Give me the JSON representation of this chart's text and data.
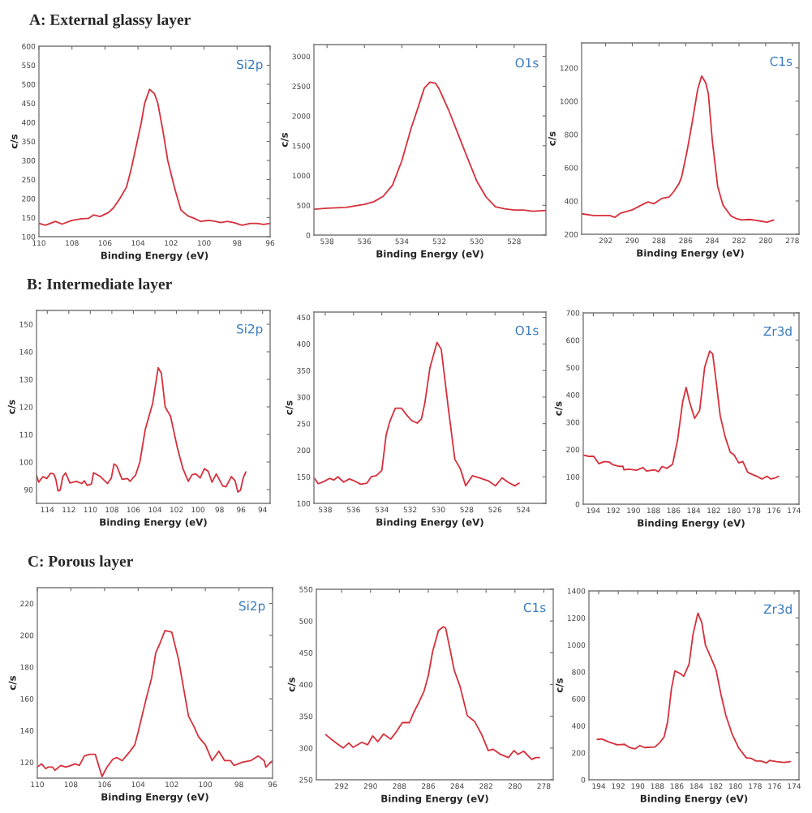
{
  "chart_data": [
    {
      "type": "line",
      "title": "A: External glassy layer",
      "xlabel": "Binding Energy (eV)",
      "ylabel": "c/s",
      "annotations": [
        "Si2p"
      ],
      "xlim": [
        110,
        96
      ],
      "xticks": [
        110,
        108,
        106,
        104,
        102,
        100,
        98,
        96
      ],
      "ylim": [
        100,
        600
      ],
      "yticks": [
        100,
        150,
        200,
        250,
        300,
        350,
        400,
        450,
        500,
        550,
        600
      ],
      "series": [
        {
          "color": "#d6303c",
          "x": [
            110,
            109.6,
            109,
            108.6,
            108,
            107.4,
            107,
            106.7,
            106.3,
            105.8,
            105.5,
            105.1,
            104.7,
            104.4,
            104.1,
            103.8,
            103.6,
            103.3,
            103.0,
            102.8,
            102.5,
            102.2,
            101.8,
            101.4,
            101,
            100.6,
            100.2,
            99.7,
            99.3,
            99,
            98.6,
            98.2,
            97.7,
            97.2,
            96.8,
            96.4,
            96
          ],
          "values": [
            135,
            130,
            140,
            133,
            143,
            147,
            148,
            157,
            153,
            163,
            175,
            200,
            230,
            280,
            340,
            400,
            450,
            487,
            475,
            450,
            380,
            300,
            230,
            170,
            155,
            148,
            140,
            143,
            140,
            137,
            140,
            137,
            130,
            135,
            135,
            132,
            135
          ]
        }
      ]
    },
    {
      "type": "line",
      "xlabel": "Binding Energy (eV)",
      "ylabel": "c/s",
      "annotations": [
        "O1s"
      ],
      "xlim": [
        538.7,
        526.3
      ],
      "xticks": [
        538,
        536,
        534,
        532,
        530,
        528
      ],
      "ylim": [
        0,
        3200
      ],
      "yticks": [
        0,
        500,
        1000,
        1500,
        2000,
        2500,
        3000
      ],
      "series": [
        {
          "color": "#d6303c",
          "x": [
            538.7,
            538,
            537,
            536,
            535.5,
            535,
            534.5,
            534,
            533.5,
            533.2,
            532.8,
            532.5,
            532.2,
            532,
            531.5,
            531,
            530.5,
            530,
            529.5,
            529,
            528.5,
            528,
            527.5,
            527,
            526.5,
            526.3
          ],
          "values": [
            435,
            450,
            465,
            515,
            560,
            650,
            840,
            1250,
            1800,
            2080,
            2470,
            2570,
            2550,
            2450,
            2100,
            1700,
            1300,
            910,
            640,
            475,
            440,
            420,
            420,
            400,
            410,
            410
          ]
        }
      ]
    },
    {
      "type": "line",
      "xlabel": "Binding Energy (eV)",
      "ylabel": "c/s",
      "annotations": [
        "C1s"
      ],
      "xlim": [
        293.8,
        277.5
      ],
      "xticks": [
        292,
        290,
        288,
        286,
        284,
        282,
        280,
        278
      ],
      "ylim": [
        200,
        1350
      ],
      "yticks": [
        200,
        400,
        600,
        800,
        1000,
        1200
      ],
      "series": [
        {
          "color": "#d6303c",
          "x": [
            293.8,
            292.9,
            291.7,
            291.3,
            290.9,
            290,
            289,
            288.8,
            288.4,
            287.8,
            287.25,
            286.9,
            286.5,
            286.3,
            285.9,
            285.5,
            285.1,
            284.8,
            284.5,
            284.3,
            284,
            283.6,
            283.2,
            282.6,
            282.2,
            281.8,
            281.2,
            280.7,
            280.3,
            279.9,
            279.4
          ],
          "values": [
            323,
            313,
            313,
            302,
            326,
            347,
            388,
            394,
            383,
            415,
            423,
            456,
            504,
            545,
            698,
            876,
            1070,
            1151,
            1111,
            1046,
            763,
            488,
            375,
            310,
            294,
            286,
            289,
            283,
            278,
            273,
            286
          ]
        }
      ]
    },
    {
      "type": "line",
      "title": "B: Intermediate layer",
      "xlabel": "Binding Energy (eV)",
      "ylabel": "c/s",
      "annotations": [
        "Si2p"
      ],
      "xlim": [
        115,
        93.3
      ],
      "xticks": [
        114,
        112,
        110,
        108,
        106,
        104,
        102,
        100,
        98,
        96,
        94
      ],
      "ylim": [
        85,
        155
      ],
      "yticks": [
        90,
        100,
        110,
        120,
        130,
        140,
        150
      ],
      "series": [
        {
          "color": "#d6303c",
          "x": [
            115,
            114.8,
            114.4,
            114.05,
            113.7,
            113.4,
            113.2,
            113,
            112.8,
            112.55,
            112.3,
            111.9,
            111.3,
            110.8,
            110.55,
            110.3,
            109.9,
            109.7,
            109.05,
            108.4,
            108.05,
            107.8,
            107.55,
            107.05,
            106.55,
            106.3,
            106.05,
            105.8,
            105.4,
            104.9,
            104.55,
            104.2,
            103.7,
            103.4,
            103.05,
            102.55,
            101.9,
            101.4,
            100.9,
            100.55,
            100.2,
            99.8,
            99.4,
            99.05,
            98.7,
            98.3,
            97.7,
            97.4,
            96.9,
            96.55,
            96.3,
            96.05,
            95.8,
            95.55
          ],
          "values": [
            95.2,
            92.7,
            94.7,
            94,
            95.9,
            95.7,
            93.7,
            89.5,
            89.8,
            94.7,
            96.1,
            92.4,
            93,
            92.2,
            93.2,
            91.5,
            92,
            96.1,
            94.7,
            92.2,
            94.2,
            99.3,
            98.6,
            93.7,
            94,
            93,
            94.2,
            95.2,
            100,
            111.8,
            116.6,
            121.5,
            134.2,
            132.2,
            120,
            116.6,
            104.9,
            97.6,
            93,
            95.4,
            95.7,
            94.2,
            97.6,
            96.6,
            92.7,
            95.7,
            91.3,
            91,
            94.7,
            93.2,
            89.1,
            89.8,
            94.2,
            96.4
          ]
        }
      ]
    },
    {
      "type": "line",
      "xlabel": "Binding Energy (eV)",
      "ylabel": "c/s",
      "annotations": [
        "O1s"
      ],
      "xlim": [
        538.8,
        522.4
      ],
      "xticks": [
        538,
        536,
        534,
        532,
        530,
        528,
        526,
        524
      ],
      "ylim": [
        100,
        460
      ],
      "yticks": [
        100,
        150,
        200,
        250,
        300,
        350,
        400,
        450
      ],
      "series": [
        {
          "color": "#d6303c",
          "x": [
            538.75,
            538.5,
            538.1,
            537.7,
            537.4,
            537.1,
            536.7,
            536.3,
            536,
            535.5,
            535.05,
            534.75,
            534.4,
            534,
            533.7,
            533.45,
            533.05,
            532.6,
            532.3,
            531.9,
            531.5,
            531.2,
            530.96,
            530.6,
            530.1,
            529.8,
            529.3,
            528.84,
            528.45,
            528.07,
            527.6,
            527,
            526.45,
            525.97,
            525.5,
            525.1,
            524.6,
            524.3
          ],
          "values": [
            147,
            137,
            141,
            147,
            144,
            150,
            140,
            146,
            143,
            136,
            138,
            150,
            152,
            162,
            228,
            253,
            279,
            279,
            268,
            256,
            251,
            259,
            289,
            355,
            403,
            390,
            279,
            183,
            165,
            133,
            152,
            147,
            142,
            133,
            148,
            140,
            133,
            138
          ]
        }
      ]
    },
    {
      "type": "line",
      "xlabel": "Binding Energy (eV)",
      "ylabel": "c/s",
      "annotations": [
        "Zr3d"
      ],
      "xlim": [
        195,
        173.5
      ],
      "xticks": [
        194,
        192,
        190,
        188,
        186,
        184,
        182,
        180,
        178,
        176,
        174
      ],
      "ylim": [
        0,
        700
      ],
      "yticks": [
        0,
        100,
        200,
        300,
        400,
        500,
        600,
        700
      ],
      "series": [
        {
          "color": "#d6303c",
          "x": [
            195,
            194.45,
            193.95,
            193.45,
            192.9,
            192.4,
            192.05,
            191.4,
            191.05,
            190.95,
            190.4,
            189.7,
            189.05,
            188.7,
            187.9,
            187.5,
            187.15,
            186.65,
            186.1,
            185.6,
            185.1,
            184.75,
            184.4,
            183.9,
            183.4,
            182.9,
            182.4,
            182.1,
            181.7,
            181.35,
            180.85,
            180.35,
            179.97,
            179.5,
            179.1,
            178.6,
            178.1,
            177.7,
            177.2,
            176.7,
            176.3,
            175.8,
            175.56
          ],
          "values": [
            180,
            175,
            175,
            148,
            156,
            154,
            144,
            138,
            139,
            126,
            128,
            124,
            134,
            121,
            126,
            119,
            138,
            131,
            146,
            235,
            373,
            427,
            373,
            314,
            343,
            501,
            560,
            550,
            432,
            323,
            245,
            190,
            180,
            151,
            156,
            116,
            108,
            102,
            92,
            102,
            92,
            97,
            102
          ]
        }
      ]
    },
    {
      "type": "line",
      "title": "C: Porous layer",
      "xlabel": "Binding Energy (eV)",
      "ylabel": "c/s",
      "annotations": [
        "Si2p"
      ],
      "xlim": [
        110,
        96
      ],
      "xticks": [
        110,
        108,
        106,
        104,
        102,
        100,
        98,
        96
      ],
      "ylim": [
        110,
        230
      ],
      "yticks": [
        120,
        140,
        160,
        180,
        200,
        220
      ],
      "series": [
        {
          "color": "#d6303c",
          "x": [
            110,
            109.75,
            109.5,
            109.35,
            109.1,
            108.95,
            108.6,
            108.3,
            108,
            107.75,
            107.5,
            107.2,
            106.9,
            106.55,
            106.15,
            105.85,
            105.5,
            105.27,
            104.95,
            104.55,
            104.2,
            104,
            103.5,
            103.2,
            102.95,
            102.7,
            102.4,
            102,
            101.6,
            101,
            100.7,
            100.4,
            100,
            99.6,
            99.2,
            98.85,
            98.5,
            98.3,
            97.8,
            97.3,
            96.85,
            96.5,
            96.4,
            96
          ],
          "values": [
            117,
            119,
            116,
            117,
            117,
            115,
            118,
            117,
            118,
            119,
            118,
            124,
            125,
            125,
            111,
            117,
            122,
            123,
            121,
            126,
            131,
            139,
            161,
            173,
            189,
            195,
            203,
            202,
            185,
            149,
            143,
            136,
            131,
            121,
            127,
            121,
            121,
            118,
            120,
            121,
            124,
            121,
            117,
            121
          ]
        }
      ]
    },
    {
      "type": "line",
      "xlabel": "Binding Energy (eV)",
      "ylabel": "c/s",
      "annotations": [
        "C1s"
      ],
      "xlim": [
        293.75,
        277.35
      ],
      "xticks": [
        292,
        290,
        288,
        286,
        284,
        282,
        280,
        278
      ],
      "ylim": [
        250,
        550
      ],
      "yticks": [
        250,
        300,
        350,
        400,
        450,
        500,
        550
      ],
      "series": [
        {
          "color": "#d6303c",
          "x": [
            293.1,
            292.5,
            291.9,
            291.5,
            291.2,
            290.6,
            290.2,
            289.85,
            289.5,
            289.1,
            288.6,
            288.2,
            287.8,
            287.3,
            287.03,
            286.65,
            286.3,
            286,
            285.7,
            285.3,
            284.96,
            284.8,
            284.5,
            284.2,
            283.8,
            283.3,
            282.8,
            282.3,
            281.85,
            281.5,
            281,
            280.45,
            280.07,
            279.8,
            279.4,
            278.84,
            278.56,
            278.3
          ],
          "values": [
            321,
            310,
            300,
            308,
            301,
            309,
            305,
            319,
            310,
            322,
            314,
            326,
            340,
            340,
            355,
            372,
            389,
            414,
            452,
            485,
            491,
            489,
            456,
            422,
            397,
            351,
            342,
            321,
            296,
            298,
            290,
            285,
            296,
            290,
            295,
            282,
            285,
            285
          ]
        }
      ]
    },
    {
      "type": "line",
      "xlabel": "Binding Energy (eV)",
      "ylabel": "c/s",
      "annotations": [
        "Zr3d"
      ],
      "xlim": [
        195,
        173.5
      ],
      "xticks": [
        194,
        192,
        190,
        188,
        186,
        184,
        182,
        180,
        178,
        176,
        174
      ],
      "ylim": [
        0,
        1400
      ],
      "yticks": [
        0,
        200,
        400,
        600,
        800,
        1000,
        1200,
        1400
      ],
      "series": [
        {
          "color": "#d6303c",
          "x": [
            194.15,
            193.7,
            192.9,
            192.1,
            191.35,
            190.85,
            190.3,
            189.8,
            189.3,
            188.25,
            187.7,
            187.3,
            186.95,
            186.55,
            186.2,
            185.65,
            185.3,
            184.75,
            184.35,
            183.85,
            183.45,
            183.07,
            182.7,
            182,
            181.5,
            180.99,
            180.35,
            179.7,
            178.9,
            178.4,
            177.9,
            177.4,
            176.85,
            176.5,
            175.8,
            175.05,
            174.4
          ],
          "values": [
            299,
            303,
            279,
            259,
            263,
            239,
            229,
            253,
            239,
            243,
            279,
            319,
            428,
            677,
            807,
            787,
            767,
            857,
            1076,
            1235,
            1165,
            996,
            936,
            817,
            637,
            478,
            339,
            239,
            163,
            159,
            139,
            139,
            125,
            143,
            135,
            129,
            135
          ]
        }
      ]
    }
  ]
}
